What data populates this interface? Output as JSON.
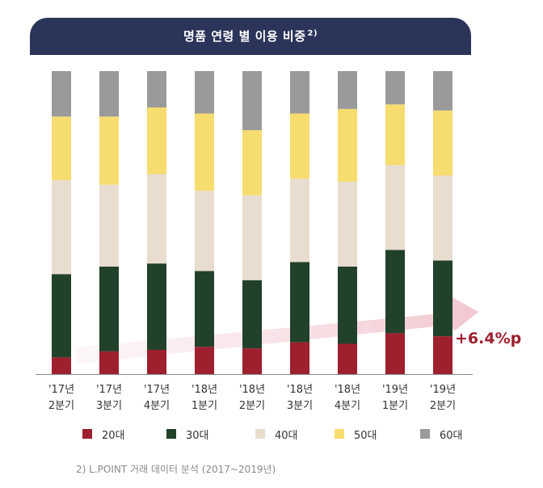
{
  "chart_data": {
    "type": "bar",
    "stacked": true,
    "title": "명품 연령 별 이용 비중",
    "title_footnote": "2)",
    "categories": [
      [
        "'17년",
        "2분기"
      ],
      [
        "'17년",
        "3분기"
      ],
      [
        "'17년",
        "4분기"
      ],
      [
        "'18년",
        "1분기"
      ],
      [
        "'18년",
        "2분기"
      ],
      [
        "'18년",
        "3분기"
      ],
      [
        "'18년",
        "4분기"
      ],
      [
        "'19년",
        "1분기"
      ],
      [
        "'19년",
        "2분기"
      ]
    ],
    "ylim": [
      0,
      100
    ],
    "series": [
      {
        "name": "20대",
        "color": "#9e1f2e",
        "values": [
          5.5,
          7.5,
          8.0,
          9.0,
          8.5,
          10.5,
          10.0,
          13.5,
          12.5
        ]
      },
      {
        "name": "30대",
        "color": "#22412a",
        "values": [
          27.5,
          28.0,
          28.5,
          25.0,
          22.5,
          26.5,
          25.5,
          27.5,
          25.0
        ]
      },
      {
        "name": "40대",
        "color": "#e9ddd0",
        "values": [
          31.0,
          27.0,
          29.5,
          26.5,
          28.0,
          27.5,
          28.0,
          28.0,
          28.0
        ]
      },
      {
        "name": "50대",
        "color": "#f7dc6f",
        "values": [
          21.0,
          22.5,
          22.0,
          25.5,
          21.5,
          21.5,
          24.0,
          20.0,
          21.5
        ]
      },
      {
        "name": "60대",
        "color": "#9a9a9a",
        "values": [
          15.0,
          15.0,
          12.0,
          14.0,
          19.5,
          14.0,
          12.5,
          11.0,
          13.0
        ]
      }
    ],
    "annotation": "+6.4%p",
    "legend_position": "bottom"
  },
  "footnote": "2) L.POINT 거래 데이터 분석 (2017~2019년)"
}
